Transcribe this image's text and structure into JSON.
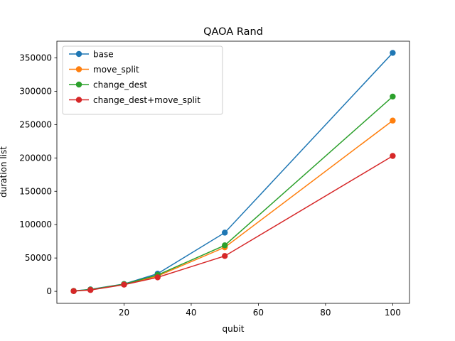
{
  "chart_data": {
    "type": "line",
    "title": "QAOA Rand",
    "xlabel": "qubit",
    "ylabel": "duration list",
    "x": [
      5,
      10,
      20,
      30,
      50,
      100
    ],
    "xlim": [
      0,
      105
    ],
    "ylim": [
      -18000,
      375000
    ],
    "xticks": [
      20,
      40,
      60,
      80,
      100
    ],
    "yticks": [
      0,
      50000,
      100000,
      150000,
      200000,
      250000,
      300000,
      350000
    ],
    "grid": false,
    "legend": "top-left",
    "series": [
      {
        "name": "base",
        "color": "#1f77b4",
        "values": [
          600,
          3000,
          11000,
          26500,
          88000,
          357500
        ]
      },
      {
        "name": "move_split",
        "color": "#ff7f0e",
        "values": [
          500,
          2500,
          10500,
          23000,
          66000,
          256000
        ]
      },
      {
        "name": "change_dest",
        "color": "#2ca02c",
        "values": [
          500,
          2600,
          10800,
          24500,
          69000,
          292000
        ]
      },
      {
        "name": "change_dest+move_split",
        "color": "#d62728",
        "values": [
          400,
          2000,
          10000,
          21000,
          53000,
          203000
        ]
      }
    ]
  }
}
